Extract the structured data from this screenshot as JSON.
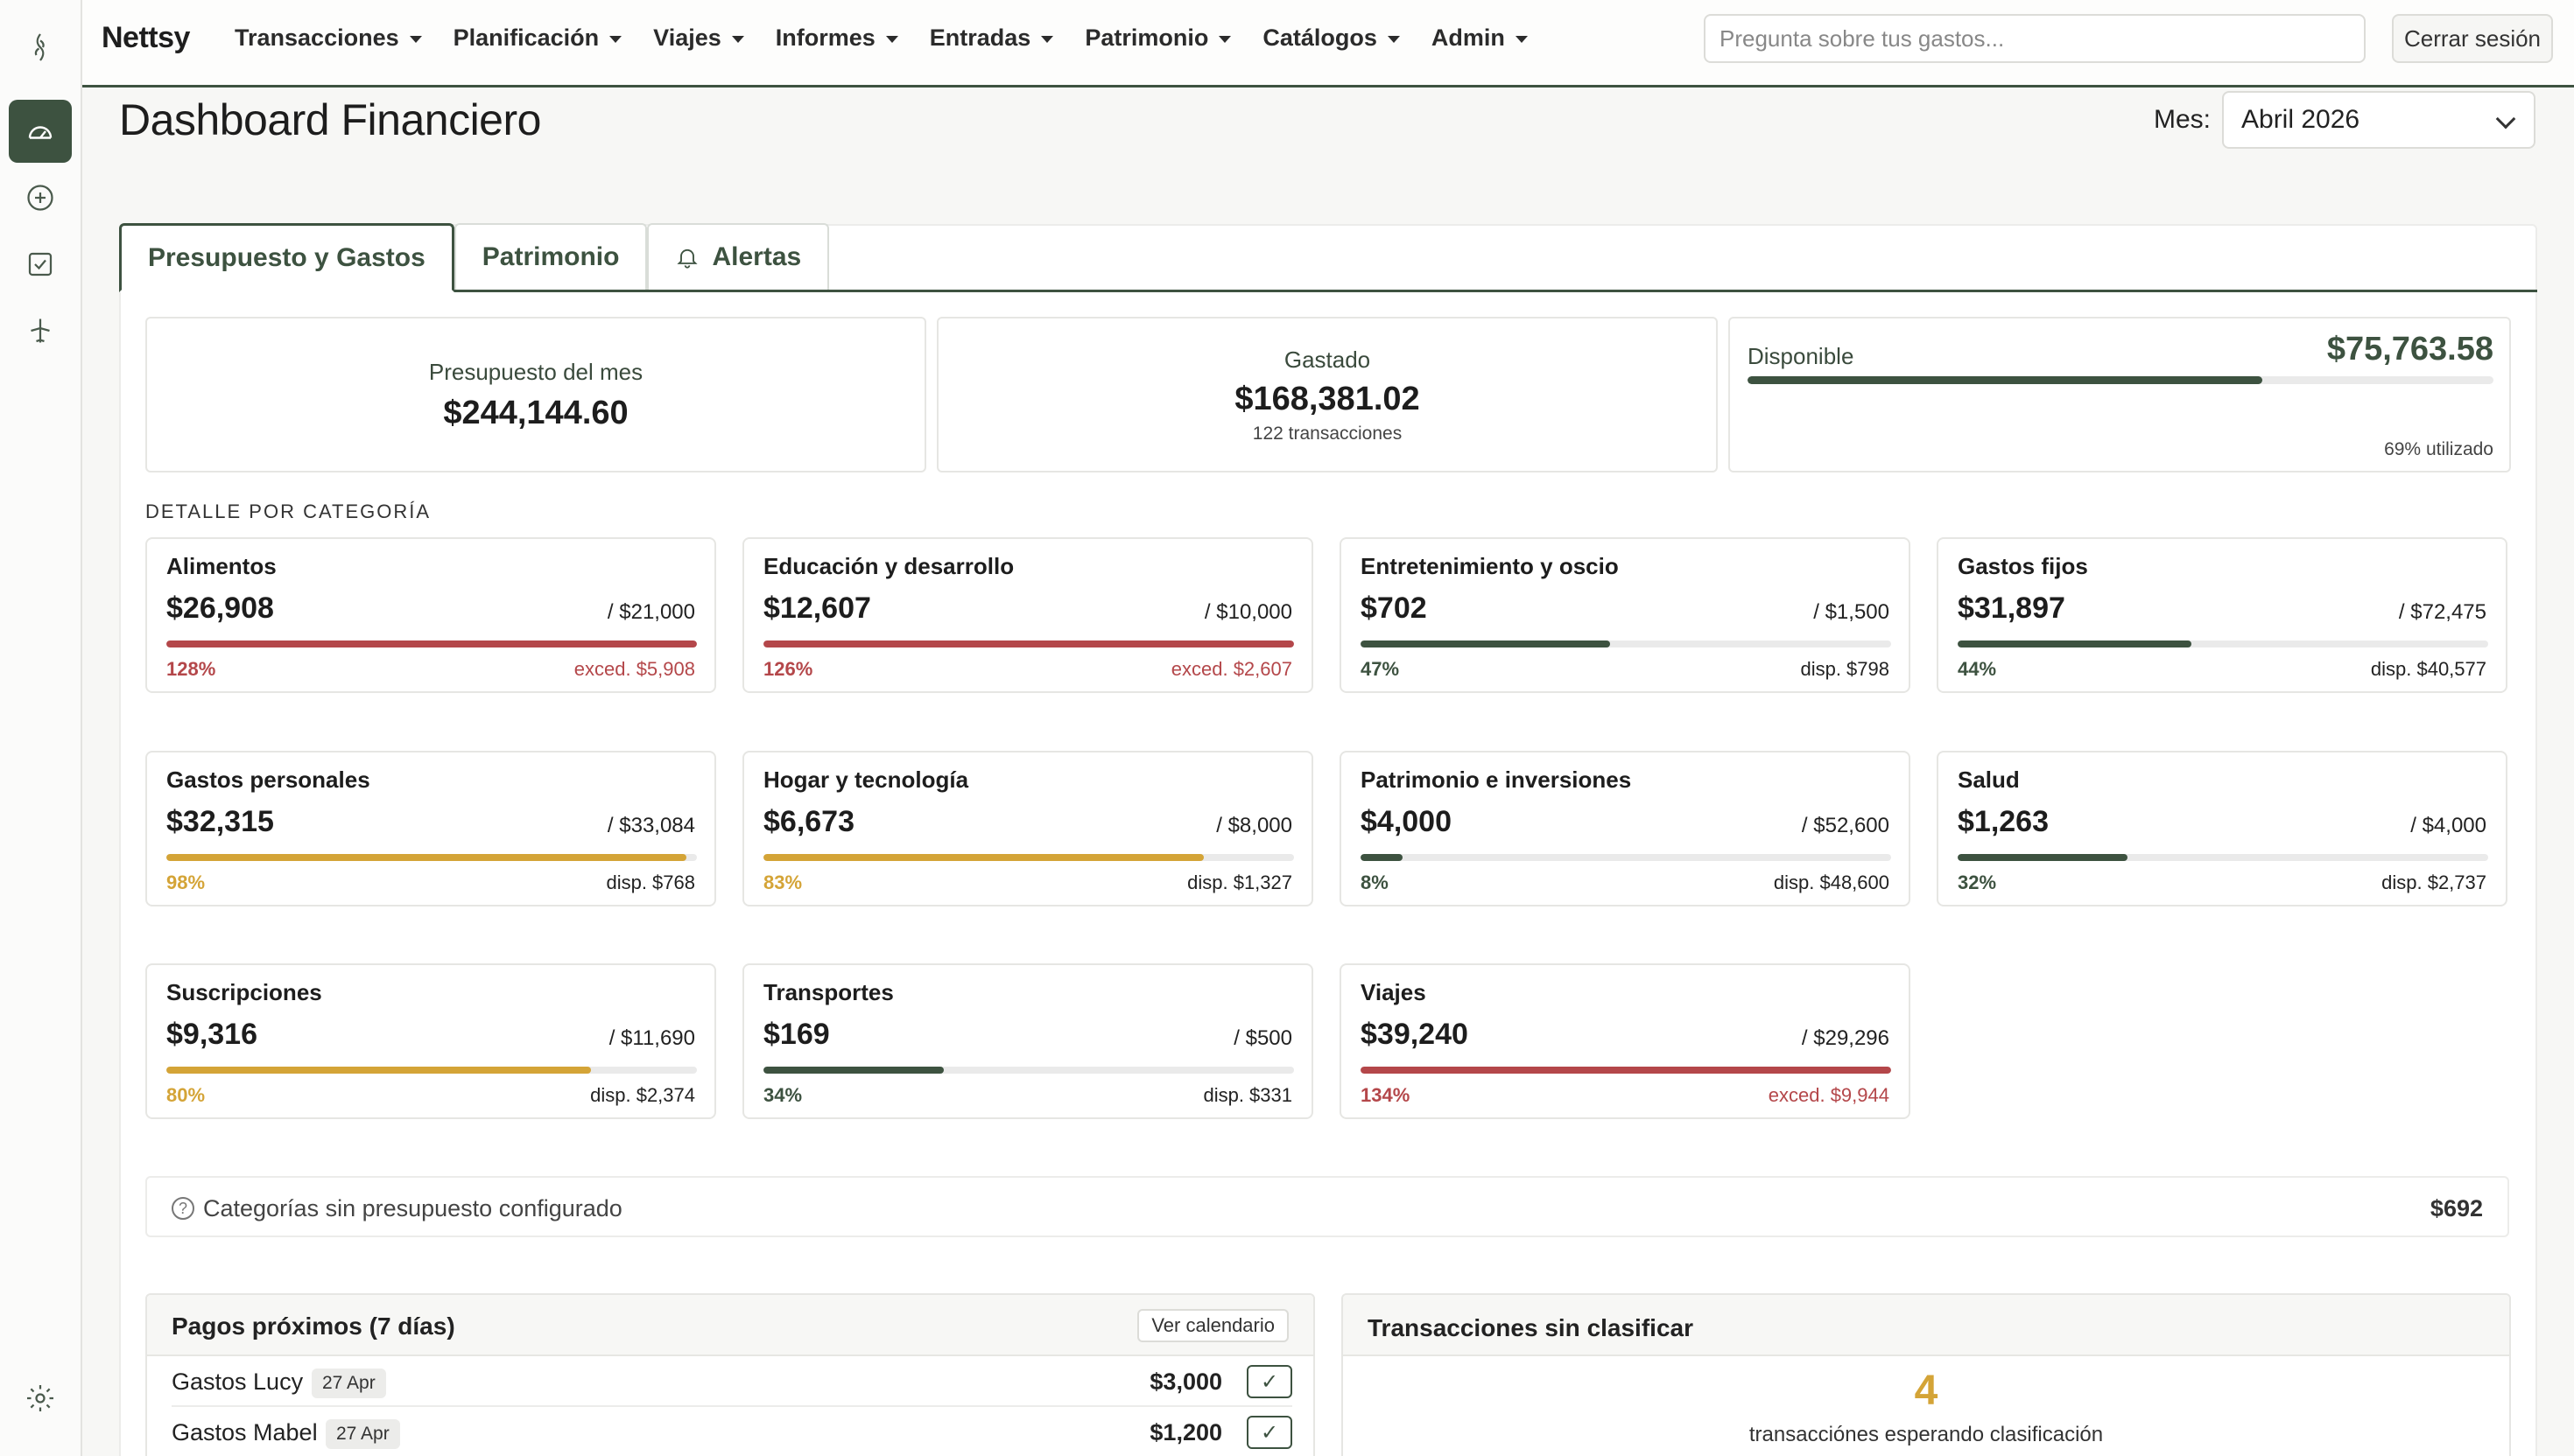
{
  "app": {
    "brand": "Nettsy",
    "nav": [
      {
        "label": "Transacciones"
      },
      {
        "label": "Planificación"
      },
      {
        "label": "Viajes"
      },
      {
        "label": "Informes"
      },
      {
        "label": "Entradas"
      },
      {
        "label": "Patrimonio"
      },
      {
        "label": "Catálogos"
      },
      {
        "label": "Admin"
      }
    ],
    "search_placeholder": "Pregunta sobre tus gastos...",
    "logout_label": "Cerrar sesión"
  },
  "header": {
    "title": "Dashboard Financiero",
    "month_label": "Mes:",
    "month_value": "Abril 2026"
  },
  "tabs": [
    {
      "label": "Presupuesto y Gastos",
      "active": true
    },
    {
      "label": "Patrimonio",
      "active": false
    },
    {
      "label": "Alertas",
      "active": false
    }
  ],
  "summary": {
    "budget_label": "Presupuesto del mes",
    "budget_value": "$244,144.60",
    "spent_label": "Gastado",
    "spent_value": "$168,381.02",
    "spent_sub": "122 transacciones",
    "available_label": "Disponible",
    "available_value": "$75,763.58",
    "used_fraction": 0.69,
    "used_label": "69% utilizado"
  },
  "section_title": "DETALLE POR CATEGORÍA",
  "categories": [
    {
      "name": "Alimentos",
      "spent": "$26,908",
      "budget": "/ $21,000",
      "pct_label": "128%",
      "fraction": 1.0,
      "status": "over",
      "rem": "exced. $5,908"
    },
    {
      "name": "Educación y desarrollo",
      "spent": "$12,607",
      "budget": "/ $10,000",
      "pct_label": "126%",
      "fraction": 1.0,
      "status": "over",
      "rem": "exced. $2,607"
    },
    {
      "name": "Entretenimiento y oscio",
      "spent": "$702",
      "budget": "/ $1,500",
      "pct_label": "47%",
      "fraction": 0.47,
      "status": "ok",
      "rem": "disp. $798"
    },
    {
      "name": "Gastos fijos",
      "spent": "$31,897",
      "budget": "/ $72,475",
      "pct_label": "44%",
      "fraction": 0.44,
      "status": "ok",
      "rem": "disp. $40,577"
    },
    {
      "name": "Gastos personales",
      "spent": "$32,315",
      "budget": "/ $33,084",
      "pct_label": "98%",
      "fraction": 0.98,
      "status": "warn",
      "rem": "disp. $768"
    },
    {
      "name": "Hogar y tecnología",
      "spent": "$6,673",
      "budget": "/ $8,000",
      "pct_label": "83%",
      "fraction": 0.83,
      "status": "warn",
      "rem": "disp. $1,327"
    },
    {
      "name": "Patrimonio e inversiones",
      "spent": "$4,000",
      "budget": "/ $52,600",
      "pct_label": "8%",
      "fraction": 0.08,
      "status": "ok",
      "rem": "disp. $48,600"
    },
    {
      "name": "Salud",
      "spent": "$1,263",
      "budget": "/ $4,000",
      "pct_label": "32%",
      "fraction": 0.32,
      "status": "ok",
      "rem": "disp. $2,737"
    },
    {
      "name": "Suscripciones",
      "spent": "$9,316",
      "budget": "/ $11,690",
      "pct_label": "80%",
      "fraction": 0.8,
      "status": "warn",
      "rem": "disp. $2,374"
    },
    {
      "name": "Transportes",
      "spent": "$169",
      "budget": "/ $500",
      "pct_label": "34%",
      "fraction": 0.34,
      "status": "ok",
      "rem": "disp. $331"
    },
    {
      "name": "Viajes",
      "spent": "$39,240",
      "budget": "/ $29,296",
      "pct_label": "134%",
      "fraction": 1.0,
      "status": "over",
      "rem": "exced. $9,944"
    }
  ],
  "status_colors": {
    "ok": "#3d5240",
    "warn": "#d4a437",
    "over": "#b4474a"
  },
  "status_text_colors": {
    "ok": "#3d5240",
    "warn": "#d4a437",
    "over": "#b4474a"
  },
  "rem_text_colors": {
    "ok": "#222222",
    "warn": "#222222",
    "over": "#b4474a"
  },
  "no_budget": {
    "label": "Categorías sin presupuesto configurado",
    "amount": "$692",
    "icon": "question-circle-icon"
  },
  "payments": {
    "title": "Pagos próximos (7 días)",
    "calendar_label": "Ver calendario",
    "items": [
      {
        "name": "Gastos Lucy",
        "date": "27 Apr",
        "amount": "$3,000"
      },
      {
        "name": "Gastos Mabel",
        "date": "27 Apr",
        "amount": "$1,200"
      }
    ]
  },
  "unclassified": {
    "title": "Transacciones sin clasificar",
    "count": "4",
    "label": "transacciónes esperando clasificación"
  }
}
